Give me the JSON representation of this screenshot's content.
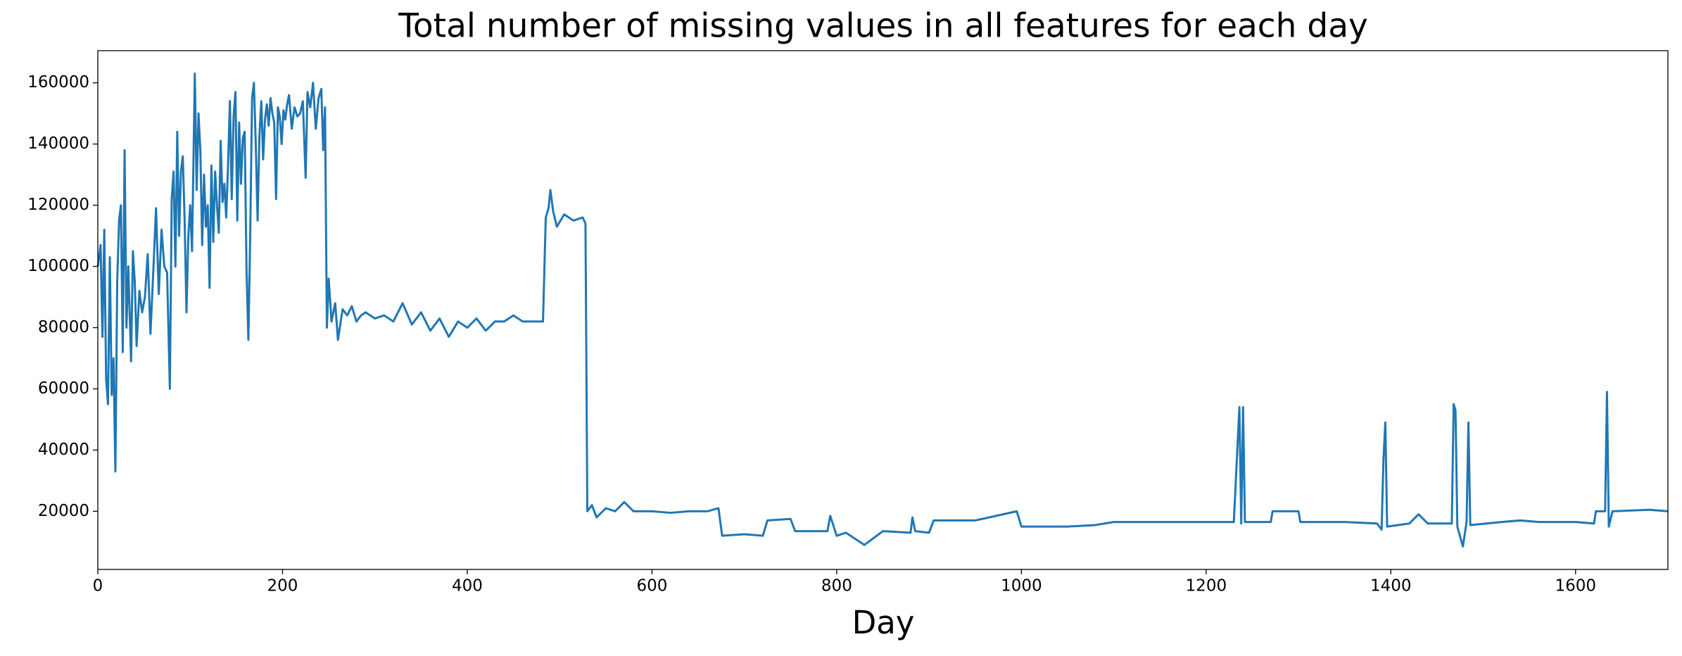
{
  "chart_data": {
    "type": "line",
    "title": "Total number of missing values in all features for each day",
    "x_label": "Day",
    "x": [
      0,
      3,
      5,
      7,
      9,
      11,
      13,
      15,
      17,
      19,
      21,
      23,
      25,
      27,
      29,
      31,
      33,
      36,
      38,
      40,
      42,
      45,
      48,
      51,
      54,
      57,
      60,
      63,
      66,
      69,
      72,
      75,
      78,
      80,
      82,
      84,
      86,
      88,
      90,
      92,
      94,
      96,
      98,
      100,
      102,
      104,
      105,
      107,
      109,
      111,
      113,
      115,
      117,
      119,
      121,
      123,
      125,
      127,
      129,
      131,
      133,
      135,
      137,
      139,
      141,
      143,
      145,
      147,
      149,
      151,
      153,
      155,
      157,
      159,
      161,
      163,
      165,
      167,
      169,
      171,
      173,
      175,
      177,
      179,
      181,
      183,
      185,
      187,
      189,
      191,
      193,
      195,
      197,
      199,
      201,
      203,
      205,
      207,
      210,
      213,
      216,
      219,
      222,
      225,
      227,
      230,
      233,
      236,
      239,
      242,
      244,
      246,
      248,
      250,
      253,
      257,
      260,
      265,
      270,
      275,
      280,
      285,
      290,
      300,
      310,
      320,
      330,
      340,
      350,
      360,
      370,
      380,
      390,
      400,
      410,
      420,
      430,
      440,
      450,
      460,
      470,
      480,
      482,
      485,
      488,
      490,
      493,
      497,
      505,
      515,
      525,
      528,
      530,
      535,
      540,
      550,
      560,
      570,
      580,
      600,
      620,
      640,
      660,
      672,
      676,
      700,
      720,
      725,
      750,
      755,
      790,
      793,
      800,
      810,
      830,
      850,
      880,
      882,
      885,
      900,
      905,
      950,
      980,
      995,
      1000,
      1050,
      1080,
      1100,
      1150,
      1200,
      1230,
      1236,
      1238,
      1240,
      1242,
      1270,
      1272,
      1300,
      1302,
      1350,
      1385,
      1390,
      1392,
      1394,
      1396,
      1420,
      1430,
      1440,
      1466,
      1468,
      1470,
      1472,
      1478,
      1482,
      1484,
      1486,
      1520,
      1540,
      1560,
      1600,
      1620,
      1622,
      1632,
      1634,
      1636,
      1640,
      1680,
      1700
    ],
    "values": [
      100000,
      107000,
      77000,
      112000,
      63000,
      55000,
      103000,
      58000,
      70000,
      33000,
      95000,
      115000,
      120000,
      72000,
      138000,
      80000,
      100000,
      69000,
      105000,
      95000,
      74000,
      92000,
      85000,
      90000,
      104000,
      78000,
      98000,
      119000,
      91000,
      112000,
      100000,
      98000,
      60000,
      122000,
      131000,
      100000,
      144000,
      110000,
      131000,
      136000,
      115000,
      85000,
      110000,
      120000,
      105000,
      143000,
      163000,
      125000,
      150000,
      138000,
      107000,
      130000,
      113000,
      120000,
      93000,
      133000,
      108000,
      131000,
      120000,
      111000,
      141000,
      121000,
      127000,
      116000,
      133000,
      154000,
      122000,
      149000,
      157000,
      115000,
      147000,
      127000,
      142000,
      144000,
      99000,
      76000,
      110000,
      155000,
      160000,
      140000,
      115000,
      143000,
      154000,
      135000,
      148000,
      153000,
      146000,
      155000,
      150000,
      147000,
      122000,
      152000,
      149000,
      140000,
      151000,
      148000,
      153000,
      156000,
      145000,
      152000,
      149000,
      150000,
      154000,
      129000,
      157000,
      152000,
      160000,
      145000,
      155000,
      158000,
      138000,
      152000,
      80000,
      96000,
      82000,
      88000,
      76000,
      86000,
      84000,
      87000,
      82000,
      84000,
      85000,
      83000,
      84000,
      82000,
      88000,
      81000,
      85000,
      79000,
      83000,
      77000,
      82000,
      80000,
      83000,
      79000,
      82000,
      82000,
      84000,
      82000,
      82000,
      82000,
      82000,
      116000,
      119000,
      125000,
      118000,
      113000,
      117000,
      115000,
      116000,
      114000,
      20000,
      22000,
      18000,
      21000,
      20000,
      23000,
      20000,
      20000,
      19500,
      20000,
      20000,
      21000,
      12000,
      12500,
      12000,
      17000,
      17500,
      13500,
      13500,
      18500,
      12000,
      13000,
      9000,
      13500,
      13000,
      18000,
      13500,
      13000,
      17000,
      17000,
      19000,
      20000,
      15000,
      15000,
      15500,
      16500,
      16500,
      16500,
      16500,
      54000,
      16000,
      54000,
      16500,
      16500,
      20000,
      20000,
      16500,
      16500,
      16000,
      14000,
      37000,
      49000,
      15000,
      16000,
      19000,
      16000,
      16000,
      55000,
      53000,
      15000,
      8500,
      16500,
      49000,
      15500,
      16500,
      17000,
      16500,
      16500,
      16000,
      20000,
      20000,
      59000,
      15000,
      20000,
      20500,
      20000
    ],
    "color": "#1f77b4",
    "xlim": [
      0,
      1700
    ],
    "xticks": [
      0,
      200,
      400,
      600,
      800,
      1000,
      1200,
      1400,
      1600
    ],
    "ylim": [
      1000,
      170500
    ],
    "yticks": [
      20000,
      40000,
      60000,
      80000,
      100000,
      120000,
      140000,
      160000
    ]
  }
}
